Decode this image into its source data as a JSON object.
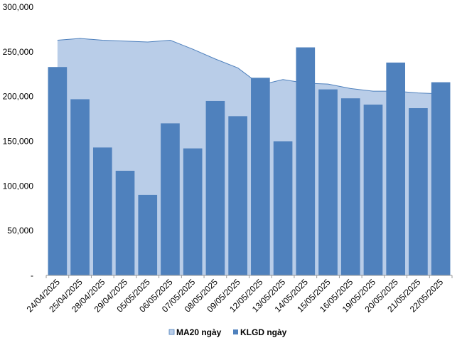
{
  "chart_data": {
    "type": "bar",
    "categories": [
      "24/04/2025",
      "25/04/2025",
      "28/04/2025",
      "29/04/2025",
      "05/05/2025",
      "06/05/2025",
      "07/05/2025",
      "08/05/2025",
      "09/05/2025",
      "12/05/2025",
      "13/05/2025",
      "14/05/2025",
      "15/05/2025",
      "16/05/2025",
      "19/05/2025",
      "20/05/2025",
      "21/05/2025",
      "22/05/2025"
    ],
    "series": [
      {
        "name": "MA20 ngày",
        "type": "area",
        "color": "#B9CDE8",
        "values": [
          263000,
          265000,
          263000,
          262000,
          261000,
          263000,
          253000,
          242000,
          232000,
          213000,
          219000,
          215000,
          214000,
          209000,
          206000,
          206000,
          204000,
          203000
        ]
      },
      {
        "name": "KLGD ngày",
        "type": "bar",
        "color": "#4F81BD",
        "values": [
          233000,
          197000,
          143000,
          117000,
          90000,
          170000,
          142000,
          195000,
          178000,
          221000,
          150000,
          255000,
          208000,
          198000,
          191000,
          238000,
          187000,
          216000
        ]
      }
    ],
    "yticks": [
      "-",
      "50,000",
      "100,000",
      "150,000",
      "200,000",
      "250,000",
      "300,000"
    ],
    "ylim": [
      0,
      300000
    ],
    "legend": "bottom",
    "grid": false,
    "area_line_color": "#4F81BD"
  }
}
